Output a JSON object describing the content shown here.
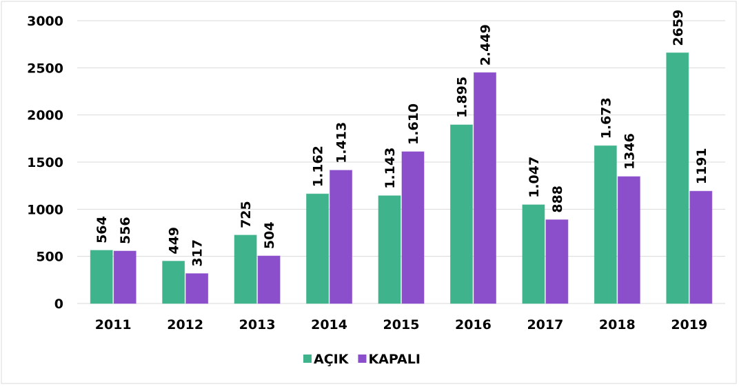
{
  "chart_data": {
    "type": "bar",
    "categories": [
      "2011",
      "2012",
      "2013",
      "2014",
      "2015",
      "2016",
      "2017",
      "2018",
      "2019"
    ],
    "series": [
      {
        "name": "AÇIK",
        "color": "#3fb38c",
        "values": [
          564,
          449,
          725,
          1162,
          1143,
          1895,
          1047,
          1673,
          2659
        ],
        "value_labels": [
          "564",
          "449",
          "725",
          "1.162",
          "1.143",
          "1.895",
          "1.047",
          "1.673",
          "2659"
        ]
      },
      {
        "name": "KAPALI",
        "color": "#8b4fcb",
        "values": [
          556,
          317,
          504,
          1413,
          1610,
          2449,
          888,
          1346,
          1191
        ],
        "value_labels": [
          "556",
          "317",
          "504",
          "1.413",
          "1.610",
          "2.449",
          "888",
          "1346",
          "1191"
        ]
      }
    ],
    "ylim": [
      0,
      3000
    ],
    "yticks": [
      0,
      500,
      1000,
      1500,
      2000,
      2500,
      3000
    ],
    "grid": true,
    "legend": "bottom"
  }
}
